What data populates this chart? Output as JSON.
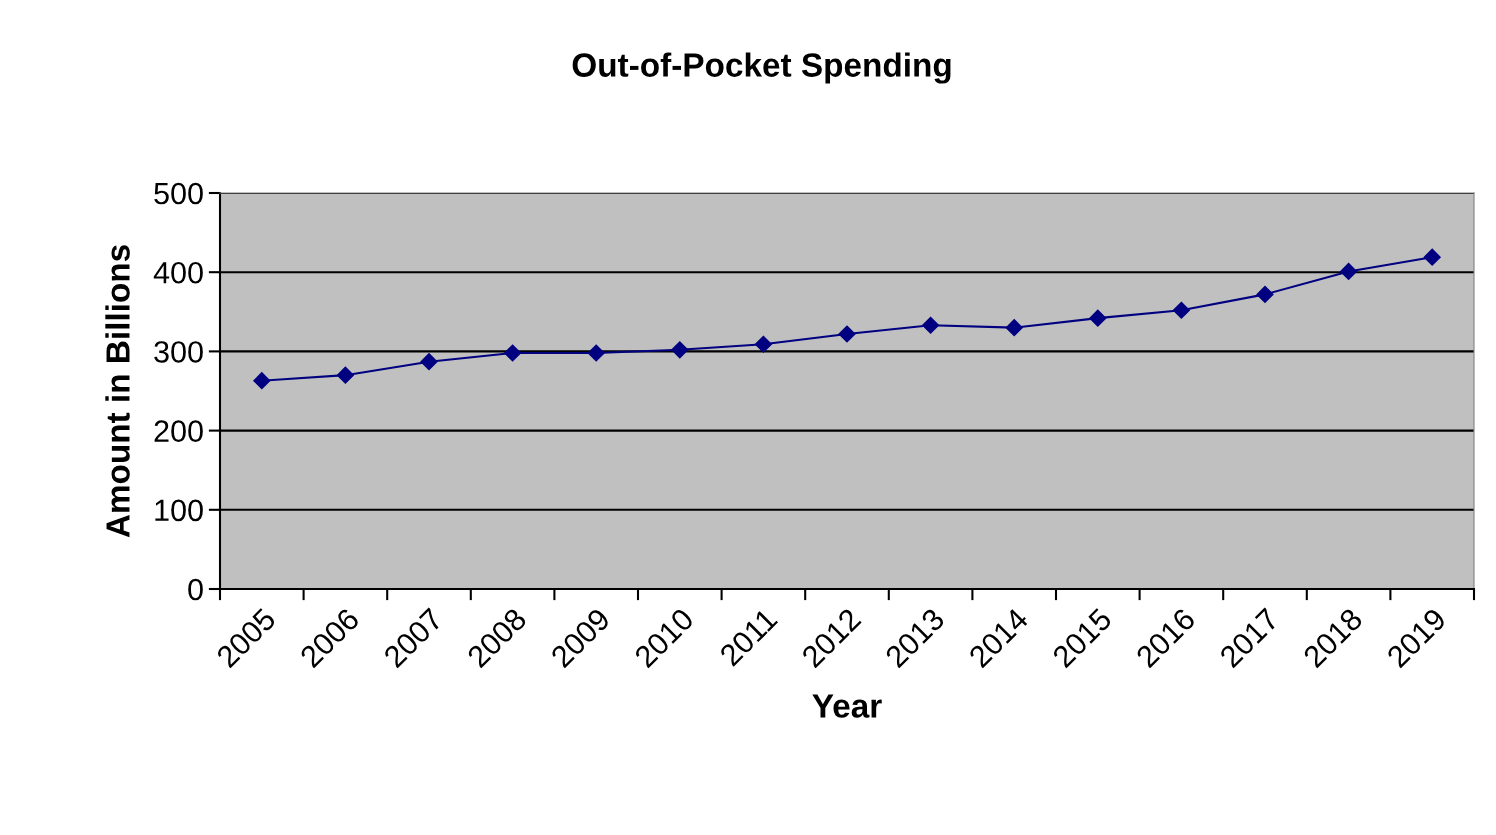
{
  "chart_data": {
    "type": "line",
    "title": "Out-of-Pocket Spending",
    "xlabel": "Year",
    "ylabel": "Amount in Billions",
    "categories": [
      "2005",
      "2006",
      "2007",
      "2008",
      "2009",
      "2010",
      "2011",
      "2012",
      "2013",
      "2014",
      "2015",
      "2016",
      "2017",
      "2018",
      "2019"
    ],
    "series": [
      {
        "color": "#000080",
        "values": [
          263,
          270,
          287,
          298,
          298,
          302,
          309,
          322,
          333,
          330,
          342,
          352,
          372,
          401,
          419
        ]
      }
    ],
    "ylim": [
      0,
      500
    ],
    "yticks": [
      0,
      100,
      200,
      300,
      400,
      500
    ],
    "grid": "y",
    "marker": "diamond",
    "line_style": "solid"
  }
}
